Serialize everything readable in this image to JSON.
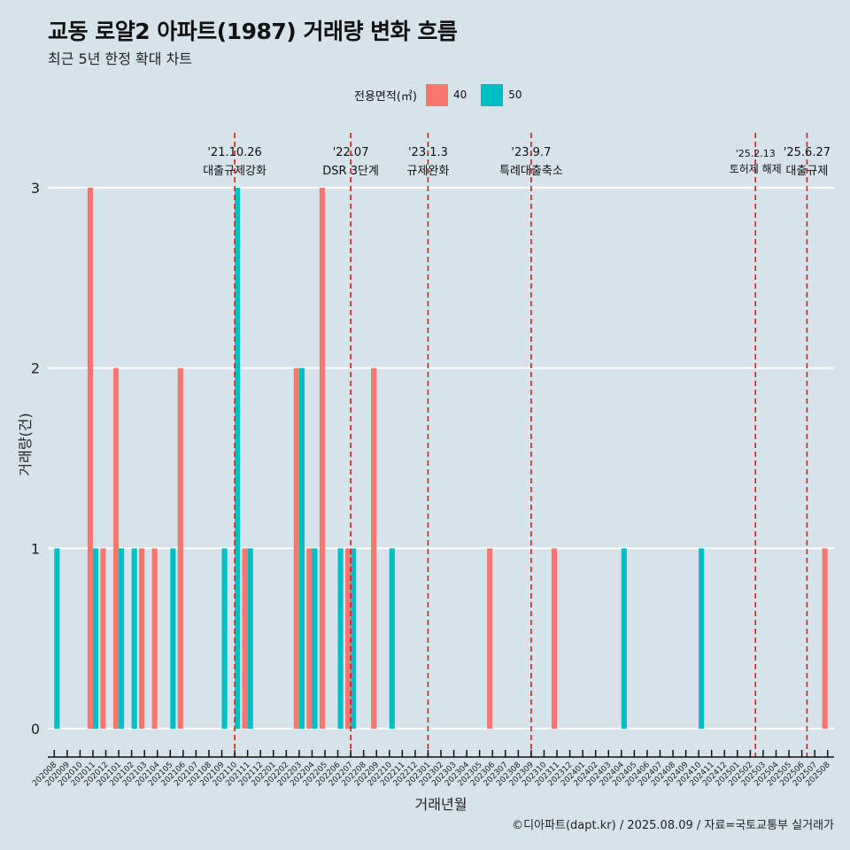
{
  "title": "교동 로얄2 아파트(1987) 거래량 변화 흐름",
  "subtitle": "최근 5년 한정 확대 차트",
  "legend": {
    "title": "전용면적(㎡)",
    "items": [
      {
        "label": "40",
        "color": "#f8766d"
      },
      {
        "label": "50",
        "color": "#00bfc4"
      }
    ]
  },
  "caption": "©디아파트(dapt.kr) / 2025.08.09 / 자료=국토교통부 실거래가",
  "chart_data": {
    "type": "bar",
    "xlabel": "거래년월",
    "ylabel": "거래량(건)",
    "ylim": [
      0,
      3
    ],
    "yticks": [
      0,
      1,
      2,
      3
    ],
    "categories": [
      "202008",
      "202009",
      "202010",
      "202011",
      "202012",
      "202101",
      "202102",
      "202103",
      "202104",
      "202105",
      "202106",
      "202107",
      "202108",
      "202109",
      "202110",
      "202111",
      "202112",
      "202201",
      "202202",
      "202203",
      "202204",
      "202205",
      "202206",
      "202207",
      "202208",
      "202209",
      "202210",
      "202211",
      "202212",
      "202301",
      "202302",
      "202303",
      "202304",
      "202305",
      "202306",
      "202307",
      "202308",
      "202309",
      "202310",
      "202311",
      "202312",
      "202401",
      "202402",
      "202403",
      "202404",
      "202405",
      "202406",
      "202407",
      "202408",
      "202409",
      "202410",
      "202411",
      "202412",
      "202501",
      "202502",
      "202503",
      "202504",
      "202505",
      "202506",
      "202507",
      "202508"
    ],
    "series": [
      {
        "name": "40",
        "color": "#f8766d",
        "values": [
          0,
          0,
          0,
          3,
          1,
          2,
          0,
          1,
          1,
          0,
          2,
          0,
          0,
          0,
          0,
          1,
          0,
          0,
          0,
          2,
          1,
          3,
          0,
          1,
          0,
          2,
          0,
          0,
          0,
          0,
          0,
          0,
          0,
          0,
          1,
          0,
          0,
          0,
          0,
          1,
          0,
          0,
          0,
          0,
          0,
          0,
          0,
          0,
          0,
          0,
          0,
          0,
          0,
          0,
          0,
          0,
          0,
          0,
          0,
          0,
          1
        ]
      },
      {
        "name": "50",
        "color": "#00bfc4",
        "values": [
          1,
          0,
          0,
          1,
          0,
          1,
          1,
          0,
          0,
          1,
          0,
          0,
          0,
          1,
          3,
          1,
          0,
          0,
          0,
          2,
          1,
          0,
          1,
          1,
          0,
          0,
          1,
          0,
          0,
          0,
          0,
          0,
          0,
          0,
          0,
          0,
          0,
          0,
          0,
          0,
          0,
          0,
          0,
          0,
          1,
          0,
          0,
          0,
          0,
          0,
          1,
          0,
          0,
          0,
          0,
          0,
          0,
          0,
          0,
          0,
          0
        ]
      }
    ],
    "annotations": [
      {
        "position": 14.0,
        "date": "'21.10.26",
        "label": "대출규제강화"
      },
      {
        "position": 23.0,
        "date": "'22.07",
        "label": "DSR 3단계"
      },
      {
        "position": 29.0,
        "date": "'23.1.3",
        "label": "규제완화"
      },
      {
        "position": 37.0,
        "date": "'23.9.7",
        "label": "특례대출축소"
      },
      {
        "position": 54.4,
        "date": "'25.2.13",
        "label": "토허제 해제"
      },
      {
        "position": 58.4,
        "date": "'25.6.27",
        "label": "대출규제"
      }
    ]
  }
}
